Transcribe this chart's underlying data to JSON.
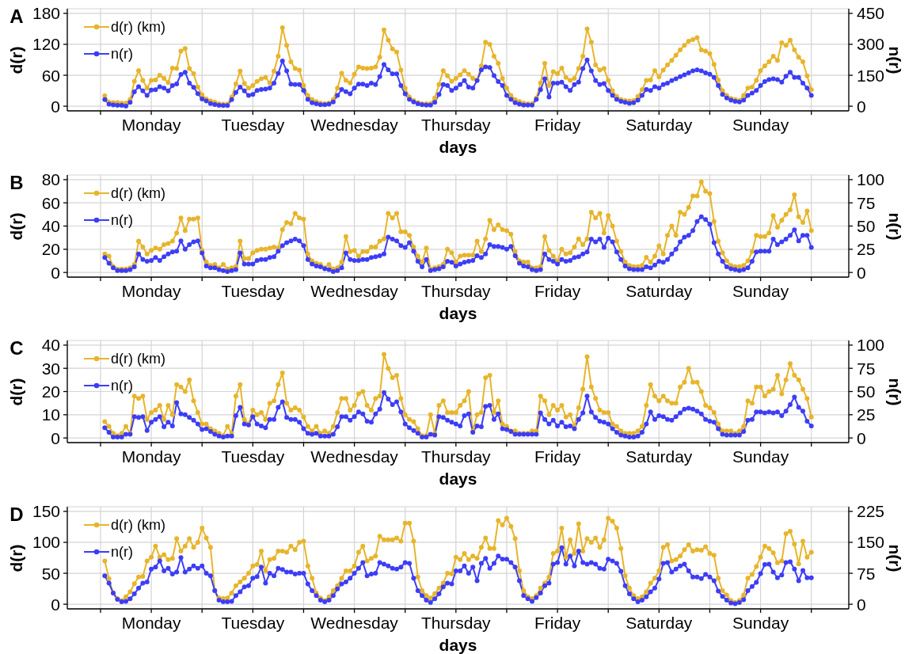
{
  "chart_data": [
    {
      "type": "line",
      "title": "A",
      "xlabel": "days",
      "ylabel": "d(r)",
      "y2label": "n(r)",
      "grid": true,
      "legend": "top left",
      "marker": "circle",
      "categories": [
        null,
        null,
        null,
        null,
        null,
        null,
        null,
        null,
        null,
        null,
        null,
        "Monday",
        null,
        null,
        null,
        null,
        null,
        null,
        null,
        null,
        null,
        null,
        null,
        null,
        null,
        null,
        null,
        null,
        null,
        null,
        null,
        null,
        null,
        null,
        null,
        "Tuesday",
        null,
        null,
        null,
        null,
        null,
        null,
        null,
        null,
        null,
        null,
        null,
        null,
        null,
        null,
        null,
        null,
        null,
        null,
        null,
        null,
        null,
        null,
        null,
        "Wednesday",
        null,
        null,
        null,
        null,
        null,
        null,
        null,
        null,
        null,
        null,
        null,
        null,
        null,
        null,
        null,
        null,
        null,
        null,
        null,
        null,
        null,
        null,
        null,
        "Thursday",
        null,
        null,
        null,
        null,
        null,
        null,
        null,
        null,
        null,
        null,
        null,
        null,
        null,
        null,
        null,
        null,
        null,
        null,
        null,
        null,
        null,
        null,
        null,
        "Friday",
        null,
        null,
        null,
        null,
        null,
        null,
        null,
        null,
        null,
        null,
        null,
        null,
        null,
        null,
        null,
        null,
        null,
        null,
        null,
        null,
        null,
        null,
        null,
        "Saturday",
        null,
        null,
        null,
        null,
        null,
        null,
        null,
        null,
        null,
        null,
        null,
        null,
        null,
        null,
        null,
        null,
        null,
        null,
        null,
        null,
        null,
        null,
        null,
        "Sunday",
        null,
        null,
        null,
        null,
        null,
        null,
        null,
        null,
        null,
        null,
        null,
        null
      ],
      "ylim": [
        -9,
        189
      ],
      "yticks": [
        0,
        60,
        120,
        180
      ],
      "y2lim": [
        -22.5,
        472.5
      ],
      "y2ticks": [
        0,
        150,
        300,
        450
      ],
      "series": [
        {
          "name": "d(r) (km)",
          "color": "#e7b52c",
          "values": [
            20,
            8,
            7,
            7,
            6,
            6,
            13,
            48,
            69,
            50,
            35,
            50,
            51,
            60,
            54,
            46,
            74,
            73,
            107,
            112,
            73,
            63,
            37,
            22,
            14,
            10,
            8,
            5,
            4,
            4,
            18,
            43,
            68,
            44,
            35,
            40,
            48,
            53,
            56,
            45,
            68,
            97,
            152,
            118,
            86,
            73,
            70,
            40,
            21,
            13,
            9,
            6,
            5,
            6,
            13,
            35,
            64,
            50,
            45,
            62,
            76,
            74,
            73,
            74,
            76,
            95,
            148,
            128,
            111,
            105,
            70,
            35,
            18,
            11,
            7,
            5,
            5,
            5,
            16,
            42,
            69,
            59,
            48,
            54,
            61,
            69,
            62,
            54,
            51,
            78,
            124,
            120,
            97,
            83,
            54,
            35,
            21,
            13,
            9,
            6,
            5,
            5,
            16,
            45,
            83,
            40,
            67,
            63,
            74,
            56,
            50,
            54,
            73,
            97,
            150,
            124,
            80,
            70,
            73,
            50,
            30,
            19,
            13,
            11,
            10,
            11,
            19,
            32,
            50,
            51,
            69,
            57,
            70,
            80,
            89,
            99,
            109,
            118,
            126,
            129,
            133,
            109,
            107,
            102,
            81,
            51,
            30,
            21,
            15,
            13,
            11,
            21,
            35,
            37,
            50,
            69,
            78,
            86,
            97,
            89,
            123,
            118,
            128,
            109,
            95,
            86,
            59,
            32
          ]
        },
        {
          "name": "n(r)",
          "color": "#3d3df5",
          "axis": "y2",
          "values": [
            32,
            10,
            6,
            4,
            4,
            1,
            19,
            70,
            95,
            74,
            52,
            78,
            80,
            95,
            88,
            74,
            100,
            108,
            154,
            165,
            112,
            92,
            61,
            35,
            25,
            13,
            8,
            4,
            3,
            3,
            32,
            67,
            93,
            74,
            52,
            57,
            76,
            81,
            83,
            88,
            112,
            159,
            219,
            171,
            107,
            105,
            105,
            76,
            33,
            17,
            12,
            7,
            7,
            10,
            21,
            52,
            81,
            71,
            60,
            88,
            107,
            107,
            100,
            112,
            105,
            143,
            202,
            176,
            157,
            157,
            100,
            60,
            33,
            21,
            12,
            7,
            5,
            5,
            19,
            57,
            105,
            100,
            76,
            88,
            105,
            124,
            93,
            88,
            124,
            176,
            190,
            188,
            148,
            119,
            100,
            52,
            33,
            17,
            10,
            5,
            5,
            5,
            33,
            80,
            133,
            45,
            112,
            112,
            117,
            95,
            76,
            105,
            117,
            183,
            224,
            171,
            124,
            105,
            110,
            76,
            52,
            33,
            24,
            19,
            14,
            17,
            29,
            52,
            81,
            76,
            95,
            88,
            105,
            112,
            124,
            133,
            143,
            152,
            162,
            171,
            176,
            171,
            162,
            155,
            140,
            100,
            57,
            40,
            29,
            24,
            21,
            29,
            52,
            64,
            76,
            100,
            119,
            129,
            133,
            129,
            117,
            145,
            165,
            140,
            140,
            112,
            88,
            52
          ]
        }
      ]
    },
    {
      "type": "line",
      "title": "B",
      "xlabel": "days",
      "ylabel": "d(r)",
      "y2label": "n(r)",
      "grid": true,
      "legend": "top left",
      "marker": "circle",
      "categories": [
        null,
        null,
        null,
        null,
        null,
        null,
        null,
        null,
        null,
        null,
        null,
        "Monday",
        null,
        null,
        null,
        null,
        null,
        null,
        null,
        null,
        null,
        null,
        null,
        null,
        null,
        null,
        null,
        null,
        null,
        null,
        null,
        null,
        null,
        null,
        null,
        "Tuesday",
        null,
        null,
        null,
        null,
        null,
        null,
        null,
        null,
        null,
        null,
        null,
        null,
        null,
        null,
        null,
        null,
        null,
        null,
        null,
        null,
        null,
        null,
        null,
        "Wednesday",
        null,
        null,
        null,
        null,
        null,
        null,
        null,
        null,
        null,
        null,
        null,
        null,
        null,
        null,
        null,
        null,
        null,
        null,
        null,
        null,
        null,
        null,
        null,
        "Thursday",
        null,
        null,
        null,
        null,
        null,
        null,
        null,
        null,
        null,
        null,
        null,
        null,
        null,
        null,
        null,
        null,
        null,
        null,
        null,
        null,
        null,
        null,
        null,
        "Friday",
        null,
        null,
        null,
        null,
        null,
        null,
        null,
        null,
        null,
        null,
        null,
        null,
        null,
        null,
        null,
        null,
        null,
        null,
        null,
        null,
        null,
        null,
        null,
        "Saturday",
        null,
        null,
        null,
        null,
        null,
        null,
        null,
        null,
        null,
        null,
        null,
        null,
        null,
        null,
        null,
        null,
        null,
        null,
        null,
        null,
        null,
        null,
        null,
        "Sunday",
        null,
        null,
        null,
        null,
        null,
        null,
        null,
        null,
        null,
        null,
        null,
        null
      ],
      "ylim": [
        -4,
        84
      ],
      "yticks": [
        0,
        20,
        40,
        60,
        80
      ],
      "y2lim": [
        -5,
        105
      ],
      "y2ticks": [
        0,
        25,
        50,
        75,
        100
      ],
      "series": [
        {
          "name": "d(r) (km)",
          "color": "#e7b52c",
          "values": [
            16,
            14,
            5,
            3,
            3,
            3,
            4,
            7,
            27,
            22,
            16,
            19,
            21,
            20,
            24,
            25,
            27,
            34,
            47,
            36,
            46,
            46,
            47,
            19,
            9,
            6,
            7,
            4,
            7,
            3,
            4,
            5,
            27,
            12,
            12,
            17,
            19,
            20,
            20,
            21,
            22,
            21,
            37,
            43,
            42,
            51,
            47,
            46,
            16,
            10,
            8,
            7,
            4,
            7,
            3,
            4,
            9,
            31,
            18,
            19,
            14,
            18,
            18,
            22,
            22,
            27,
            29,
            51,
            47,
            51,
            35,
            35,
            32,
            22,
            14,
            9,
            21,
            3,
            4,
            5,
            7,
            20,
            17,
            9,
            14,
            15,
            15,
            15,
            27,
            18,
            29,
            45,
            37,
            41,
            37,
            36,
            33,
            18,
            10,
            9,
            9,
            4,
            4,
            5,
            31,
            19,
            14,
            10,
            20,
            16,
            17,
            22,
            29,
            24,
            29,
            52,
            47,
            51,
            34,
            49,
            40,
            27,
            18,
            9,
            6,
            5,
            5,
            6,
            13,
            9,
            14,
            23,
            16,
            32,
            40,
            32,
            52,
            50,
            56,
            66,
            66,
            78,
            70,
            68,
            44,
            27,
            17,
            10,
            6,
            5,
            5,
            6,
            10,
            18,
            32,
            31,
            31,
            34,
            49,
            39,
            45,
            50,
            54,
            67,
            48,
            43,
            53,
            36
          ]
        },
        {
          "name": "n(r)",
          "color": "#3d3df5",
          "axis": "y2",
          "values": [
            16,
            10,
            5,
            2,
            2,
            2,
            3,
            6,
            20,
            14,
            12,
            13,
            16,
            13,
            17,
            20,
            22,
            23,
            34,
            25,
            30,
            33,
            34,
            21,
            7,
            5,
            5,
            3,
            2,
            1,
            2,
            3,
            21,
            9,
            9,
            9,
            13,
            14,
            14,
            16,
            17,
            23,
            29,
            32,
            34,
            36,
            34,
            29,
            14,
            9,
            7,
            6,
            4,
            3,
            1,
            2,
            5,
            21,
            14,
            13,
            13,
            14,
            14,
            16,
            17,
            18,
            20,
            38,
            36,
            34,
            29,
            27,
            32,
            23,
            12,
            6,
            14,
            2,
            3,
            4,
            6,
            12,
            11,
            7,
            9,
            11,
            12,
            13,
            18,
            16,
            20,
            30,
            28,
            28,
            27,
            25,
            28,
            18,
            10,
            7,
            6,
            3,
            2,
            3,
            20,
            14,
            12,
            9,
            14,
            12,
            13,
            16,
            17,
            20,
            22,
            36,
            33,
            36,
            27,
            37,
            33,
            22,
            14,
            7,
            4,
            3,
            3,
            3,
            6,
            5,
            8,
            12,
            11,
            14,
            20,
            25,
            33,
            38,
            40,
            45,
            55,
            60,
            57,
            52,
            32,
            20,
            12,
            6,
            4,
            3,
            2,
            3,
            5,
            12,
            22,
            23,
            23,
            23,
            36,
            30,
            33,
            36,
            40,
            46,
            34,
            40,
            40,
            27
          ]
        }
      ]
    },
    {
      "type": "line",
      "title": "C",
      "xlabel": "days",
      "ylabel": "d(r)",
      "y2label": "n(r)",
      "grid": true,
      "legend": "top left",
      "marker": "circle",
      "categories": [
        null,
        null,
        null,
        null,
        null,
        null,
        null,
        null,
        null,
        null,
        null,
        "Monday",
        null,
        null,
        null,
        null,
        null,
        null,
        null,
        null,
        null,
        null,
        null,
        null,
        null,
        null,
        null,
        null,
        null,
        null,
        null,
        null,
        null,
        null,
        null,
        "Tuesday",
        null,
        null,
        null,
        null,
        null,
        null,
        null,
        null,
        null,
        null,
        null,
        null,
        null,
        null,
        null,
        null,
        null,
        null,
        null,
        null,
        null,
        null,
        null,
        "Wednesday",
        null,
        null,
        null,
        null,
        null,
        null,
        null,
        null,
        null,
        null,
        null,
        null,
        null,
        null,
        null,
        null,
        null,
        null,
        null,
        null,
        null,
        null,
        null,
        "Thursday",
        null,
        null,
        null,
        null,
        null,
        null,
        null,
        null,
        null,
        null,
        null,
        null,
        null,
        null,
        null,
        null,
        null,
        null,
        null,
        null,
        null,
        null,
        null,
        "Friday",
        null,
        null,
        null,
        null,
        null,
        null,
        null,
        null,
        null,
        null,
        null,
        null,
        null,
        null,
        null,
        null,
        null,
        null,
        null,
        null,
        null,
        null,
        null,
        "Saturday",
        null,
        null,
        null,
        null,
        null,
        null,
        null,
        null,
        null,
        null,
        null,
        null,
        null,
        null,
        null,
        null,
        null,
        null,
        null,
        null,
        null,
        null,
        null,
        "Sunday",
        null,
        null,
        null,
        null,
        null,
        null,
        null,
        null,
        null,
        null,
        null,
        null
      ],
      "ylim": [
        -2,
        42
      ],
      "yticks": [
        0,
        10,
        20,
        30,
        40
      ],
      "y2lim": [
        -5,
        105
      ],
      "y2ticks": [
        0,
        25,
        50,
        75,
        100
      ],
      "series": [
        {
          "name": "d(r) (km)",
          "color": "#e7b52c",
          "values": [
            7,
            5,
            2,
            1,
            2,
            5,
            2,
            18,
            17,
            18,
            8,
            11,
            12,
            14,
            8,
            14,
            10,
            23,
            22,
            20,
            25,
            16,
            11,
            6,
            6,
            4,
            3,
            2,
            1,
            5,
            2,
            18,
            23,
            8,
            6,
            12,
            10,
            11,
            8,
            15,
            16,
            23,
            28,
            15,
            12,
            13,
            12,
            9,
            5,
            3,
            5,
            2,
            3,
            2,
            5,
            11,
            17,
            17,
            12,
            14,
            19,
            20,
            14,
            12,
            17,
            18,
            36,
            30,
            26,
            27,
            17,
            10,
            8,
            7,
            4,
            1,
            1,
            10,
            2,
            14,
            16,
            11,
            11,
            11,
            14,
            16,
            20,
            3,
            10,
            11,
            26,
            27,
            11,
            16,
            6,
            5,
            3,
            3,
            2,
            2,
            2,
            3,
            3,
            18,
            16,
            10,
            14,
            12,
            14,
            9,
            10,
            5,
            13,
            21,
            35,
            22,
            17,
            12,
            11,
            11,
            6,
            5,
            3,
            2,
            2,
            2,
            3,
            5,
            14,
            23,
            18,
            16,
            18,
            16,
            15,
            15,
            22,
            24,
            30,
            24,
            24,
            20,
            14,
            13,
            11,
            6,
            3,
            3,
            3,
            2,
            3,
            5,
            16,
            15,
            22,
            22,
            18,
            20,
            21,
            27,
            19,
            25,
            32,
            27,
            25,
            21,
            17,
            9
          ]
        },
        {
          "name": "n(r)",
          "color": "#3d3df5",
          "axis": "y2",
          "values": [
            11,
            6,
            1,
            1,
            1,
            4,
            4,
            23,
            22,
            23,
            8,
            17,
            20,
            23,
            12,
            17,
            13,
            38,
            26,
            25,
            22,
            19,
            15,
            9,
            10,
            7,
            4,
            2,
            1,
            2,
            2,
            24,
            33,
            15,
            14,
            23,
            15,
            13,
            11,
            20,
            20,
            33,
            39,
            22,
            20,
            20,
            17,
            10,
            5,
            4,
            5,
            2,
            2,
            2,
            4,
            12,
            23,
            23,
            19,
            23,
            28,
            26,
            18,
            17,
            26,
            31,
            49,
            42,
            36,
            39,
            28,
            15,
            11,
            8,
            5,
            1,
            1,
            4,
            3,
            23,
            22,
            19,
            17,
            15,
            13,
            24,
            26,
            6,
            13,
            12,
            34,
            35,
            20,
            26,
            10,
            9,
            7,
            4,
            4,
            4,
            4,
            4,
            4,
            27,
            20,
            15,
            19,
            13,
            17,
            12,
            13,
            10,
            20,
            27,
            45,
            28,
            22,
            18,
            17,
            15,
            10,
            6,
            3,
            2,
            1,
            1,
            2,
            6,
            15,
            28,
            20,
            24,
            23,
            20,
            19,
            23,
            27,
            31,
            32,
            31,
            29,
            26,
            20,
            18,
            17,
            10,
            4,
            3,
            3,
            3,
            3,
            7,
            19,
            20,
            28,
            28,
            27,
            28,
            27,
            28,
            24,
            29,
            36,
            44,
            33,
            29,
            18,
            13
          ]
        }
      ]
    },
    {
      "type": "line",
      "title": "D",
      "xlabel": "days",
      "ylabel": "d(r)",
      "y2label": "n(r)",
      "grid": true,
      "legend": "top left",
      "marker": "circle",
      "categories": [
        null,
        null,
        null,
        null,
        null,
        null,
        null,
        null,
        null,
        null,
        null,
        "Monday",
        null,
        null,
        null,
        null,
        null,
        null,
        null,
        null,
        null,
        null,
        null,
        null,
        null,
        null,
        null,
        null,
        null,
        null,
        null,
        null,
        null,
        null,
        null,
        "Tuesday",
        null,
        null,
        null,
        null,
        null,
        null,
        null,
        null,
        null,
        null,
        null,
        null,
        null,
        null,
        null,
        null,
        null,
        null,
        null,
        null,
        null,
        null,
        null,
        "Wednesday",
        null,
        null,
        null,
        null,
        null,
        null,
        null,
        null,
        null,
        null,
        null,
        null,
        null,
        null,
        null,
        null,
        null,
        null,
        null,
        null,
        null,
        null,
        null,
        "Thursday",
        null,
        null,
        null,
        null,
        null,
        null,
        null,
        null,
        null,
        null,
        null,
        null,
        null,
        null,
        null,
        null,
        null,
        null,
        null,
        null,
        null,
        null,
        null,
        "Friday",
        null,
        null,
        null,
        null,
        null,
        null,
        null,
        null,
        null,
        null,
        null,
        null,
        null,
        null,
        null,
        null,
        null,
        null,
        null,
        null,
        null,
        null,
        null,
        "Saturday",
        null,
        null,
        null,
        null,
        null,
        null,
        null,
        null,
        null,
        null,
        null,
        null,
        null,
        null,
        null,
        null,
        null,
        null,
        null,
        null,
        null,
        null,
        null,
        "Sunday",
        null,
        null,
        null,
        null,
        null,
        null,
        null,
        null,
        null,
        null,
        null,
        null
      ],
      "ylim": [
        -7.5,
        157.5
      ],
      "yticks": [
        0,
        50,
        100,
        150
      ],
      "y2lim": [
        -11.25,
        236.25
      ],
      "y2ticks": [
        0,
        75,
        150,
        225
      ],
      "series": [
        {
          "name": "d(r) (km)",
          "color": "#e7b52c",
          "values": [
            70,
            41,
            18,
            9,
            6,
            12,
            20,
            33,
            44,
            45,
            70,
            76,
            94,
            76,
            80,
            72,
            74,
            106,
            86,
            94,
            106,
            92,
            100,
            123,
            107,
            92,
            22,
            10,
            9,
            10,
            18,
            30,
            36,
            42,
            50,
            62,
            64,
            86,
            54,
            72,
            74,
            86,
            86,
            84,
            94,
            88,
            100,
            102,
            62,
            42,
            18,
            10,
            6,
            12,
            22,
            30,
            42,
            54,
            54,
            62,
            84,
            94,
            70,
            74,
            78,
            110,
            104,
            104,
            104,
            107,
            102,
            131,
            131,
            102,
            44,
            22,
            14,
            10,
            17,
            26,
            34,
            50,
            49,
            76,
            72,
            82,
            72,
            78,
            74,
            92,
            107,
            90,
            90,
            135,
            128,
            139,
            126,
            106,
            54,
            22,
            12,
            9,
            14,
            26,
            34,
            44,
            82,
            86,
            123,
            76,
            104,
            82,
            130,
            86,
            106,
            100,
            107,
            92,
            104,
            139,
            134,
            123,
            90,
            46,
            26,
            14,
            9,
            12,
            20,
            34,
            42,
            54,
            92,
            96,
            70,
            72,
            78,
            88,
            96,
            86,
            88,
            87,
            93,
            82,
            79,
            42,
            22,
            15,
            6,
            3,
            6,
            15,
            42,
            48,
            61,
            76,
            94,
            90,
            83,
            67,
            70,
            114,
            118,
            97,
            65,
            102,
            76,
            84
          ]
        },
        {
          "name": "n(r)",
          "color": "#3d3df5",
          "axis": "y2",
          "values": [
            69,
            51,
            27,
            12,
            6,
            7,
            13,
            25,
            39,
            51,
            54,
            85,
            90,
            105,
            81,
            87,
            73,
            78,
            113,
            78,
            85,
            93,
            87,
            93,
            75,
            69,
            33,
            10,
            6,
            6,
            7,
            21,
            30,
            42,
            45,
            63,
            67,
            90,
            51,
            75,
            69,
            87,
            84,
            78,
            78,
            73,
            75,
            75,
            49,
            33,
            21,
            10,
            6,
            10,
            21,
            37,
            49,
            54,
            63,
            75,
            87,
            101,
            69,
            73,
            75,
            101,
            97,
            93,
            87,
            85,
            90,
            101,
            99,
            63,
            33,
            21,
            10,
            4,
            13,
            25,
            42,
            51,
            49,
            81,
            81,
            93,
            75,
            90,
            57,
            99,
            111,
            87,
            99,
            117,
            109,
            109,
            101,
            90,
            57,
            21,
            13,
            7,
            16,
            27,
            45,
            51,
            97,
            101,
            137,
            97,
            117,
            93,
            129,
            101,
            97,
            101,
            97,
            87,
            85,
            109,
            105,
            99,
            80,
            45,
            25,
            13,
            6,
            10,
            18,
            30,
            39,
            61,
            99,
            101,
            78,
            85,
            93,
            97,
            81,
            66,
            66,
            62,
            72,
            66,
            57,
            32,
            19,
            10,
            3,
            1,
            4,
            11,
            33,
            43,
            53,
            74,
            96,
            97,
            78,
            64,
            71,
            101,
            103,
            85,
            57,
            82,
            64,
            64
          ]
        }
      ]
    }
  ]
}
